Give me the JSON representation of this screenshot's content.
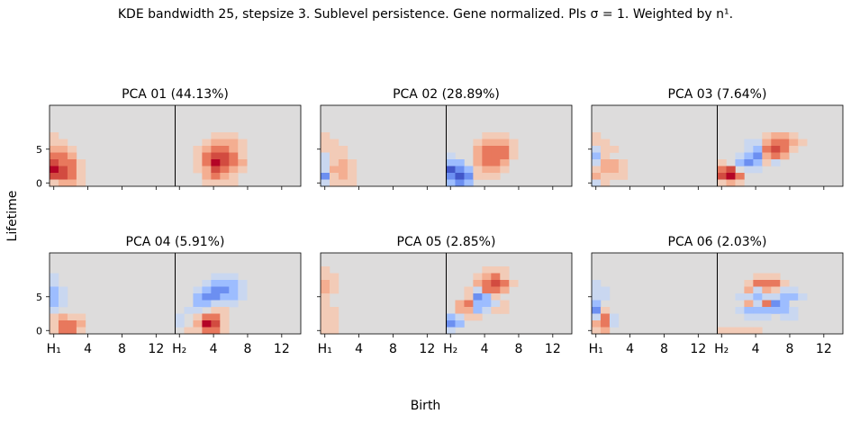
{
  "figure": {
    "suptitle": "KDE bandwidth 25, stepsize 3. Sublevel persistence. Gene normalized. PIs σ = 1. Weighted by n¹.",
    "ylabel": "Lifetime",
    "xlabel": "Birth"
  },
  "chart_data": [
    {
      "type": "heatmap",
      "title": "PCA 01 (44.13%)",
      "xticks": [
        "H₁",
        "4",
        "8",
        "12",
        "H₂",
        "4",
        "8",
        "12"
      ],
      "yticks": [
        "0",
        "5"
      ],
      "h1": [
        "..............",
        "..............",
        "..............",
        "..............",
        "1.............",
        "11............",
        "221...........",
        "332...........",
        "4331..........",
        "5431..........",
        "4431..........",
        "1221.........."
      ],
      "h2": [
        "..............",
        "..............",
        "..............",
        "..............",
        "....111.......",
        "...12221......",
        "..123321......",
        "..134431......",
        "..135432......",
        "..124321......",
        "...2321.......",
        "...1111......."
      ]
    },
    {
      "type": "heatmap",
      "title": "PCA 02 (28.89%)",
      "xticks": [
        "H₁",
        "4",
        "8",
        "12",
        "H₂",
        "4",
        "8",
        "12"
      ],
      "yticks": [
        "0",
        "5"
      ],
      "h1": [
        "..............",
        "..............",
        "..............",
        "..............",
        "1.............",
        "11............",
        "111...........",
        "a11...........",
        "a121..........",
        "a221..........",
        "c121..........",
        "a111.........."
      ],
      "h2": [
        "..............",
        "..............",
        "..............",
        "..............",
        "....111.......",
        "...12221......",
        "...23331......",
        "a..23331......",
        "bb.2332.......",
        "dcb1221.......",
        "cdc111........",
        "bcb..........."
      ]
    },
    {
      "type": "heatmap",
      "title": "PCA 03 (7.64%)",
      "xticks": [
        "H₁",
        "4",
        "8",
        "12",
        "H₂",
        "4",
        "8",
        "12"
      ],
      "yticks": [
        "0",
        "5"
      ],
      "h1": [
        "..............",
        "..............",
        "..............",
        "..............",
        "1.............",
        "11............",
        "a11...........",
        "b1............",
        "a221..........",
        "1221..........",
        "2111..........",
        "a1............"
      ],
      "h2": [
        "..............",
        "..............",
        "..............",
        "..............",
        ".....1221.....",
        "...aa23321....",
        "...ab3431.....",
        "..abc232......",
        "1.bcb1a.......",
        "34.aa.........",
        "453...........",
        "121..........."
      ]
    },
    {
      "type": "heatmap",
      "title": "PCA 04 (5.91%)",
      "xticks": [
        "H₁",
        "4",
        "8",
        "12",
        "H₂",
        "4",
        "8",
        "12"
      ],
      "yticks": [
        "0",
        "5"
      ],
      "h1": [
        "..............",
        "..............",
        "..............",
        "a.............",
        "a.............",
        "ba............",
        "ba............",
        "ba............",
        "a.............",
        "1211..........",
        "1332..........",
        "1331.........."
      ],
      "h2": [
        "..............",
        "..............",
        "..............",
        "....aaa.......",
        "...abbba......",
        "..abccba......",
        "..bccbba......",
        "..bbaaa.......",
        ".aa.11........",
        "a.1331........",
        "a.2541........",
        ".11331........"
      ]
    },
    {
      "type": "heatmap",
      "title": "PCA 05 (2.85%)",
      "xticks": [
        "H₁",
        "4",
        "8",
        "12",
        "H₂",
        "4",
        "8",
        "12"
      ],
      "yticks": [
        "0",
        "5"
      ],
      "h1": [
        "..............",
        "..............",
        "1.............",
        "11............",
        "21............",
        "21............",
        "1.............",
        "1.............",
        "11............",
        "11............",
        "11............",
        "11............"
      ],
      "h2": [
        "..............",
        "..............",
        "....111.......",
        "...1231.......",
        "...23431......",
        "..1a332.......",
        "..1cb1........",
        ".23bba1.......",
        ".22ba11.......",
        "ba11..........",
        "cb............",
        "a............."
      ]
    },
    {
      "type": "heatmap",
      "title": "PCA 06 (2.03%)",
      "xticks": [
        "H₁",
        "4",
        "8",
        "12",
        "H₂",
        "4",
        "8",
        "12"
      ],
      "yticks": [
        "0",
        "5"
      ],
      "h1": [
        "..............",
        "..............",
        "..............",
        "..............",
        "a.............",
        "aa............",
        "aa............",
        "b.............",
        "c1............",
        "a3a...........",
        "23a...........",
        "12............"
      ],
      "h2": [
        "..............",
        "..............",
        "..............",
        "....111.......",
        "...13331......",
        "...2a21aa.....",
        "..aabaabba....",
        "...2a3cb......",
        "..abbbbba.....",
        "...aaa.aa.....",
        "..............",
        "11111........."
      ]
    }
  ],
  "colors": {
    "neutral": "#dddcdc",
    "warm": [
      "#f2cbb7",
      "#f4ae91",
      "#e8785d",
      "#d24b40",
      "#b40426"
    ],
    "cool": [
      "#c9d7f0",
      "#9dbdff",
      "#6c8ff1",
      "#4257c9",
      "#3b4cc0"
    ],
    "separator": "#000000"
  }
}
